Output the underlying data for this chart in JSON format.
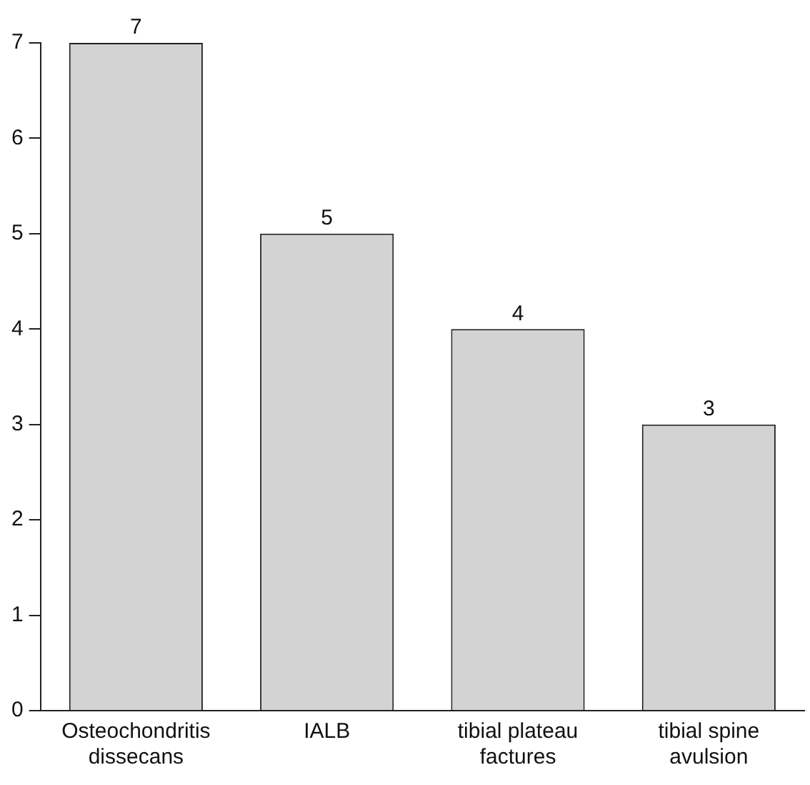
{
  "chart_data": {
    "type": "bar",
    "categories": [
      "Osteochondritis dissecans",
      "IALB",
      "tibial plateau factures",
      "tibial spine avulsion"
    ],
    "values": [
      7,
      5,
      4,
      3
    ],
    "color": "#d3d3d3",
    "ylim": [
      0,
      7
    ],
    "yticks": [
      0,
      1,
      2,
      3,
      4,
      5,
      6,
      7
    ],
    "grid": false,
    "legend": false,
    "data_labels": true
  }
}
